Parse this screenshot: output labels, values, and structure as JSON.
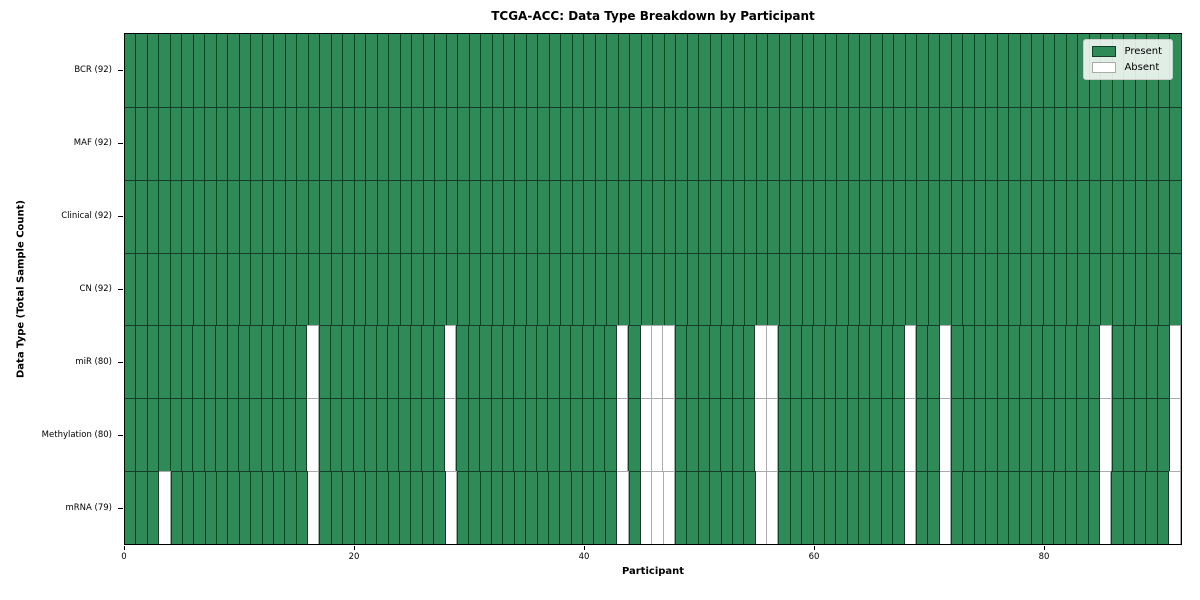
{
  "chart_data": {
    "type": "heatmap",
    "title": "TCGA-ACC: Data Type Breakdown by Participant",
    "xlabel": "Participant",
    "ylabel": "Data Type (Total Sample Count)",
    "n_participants": 92,
    "x_ticks": [
      0,
      20,
      40,
      60,
      80
    ],
    "x_range": [
      0,
      92
    ],
    "grid": "cell-borders",
    "legend_position": "upper-right",
    "legend": [
      {
        "label": "Present",
        "color": "#2e8b57"
      },
      {
        "label": "Absent",
        "color": "#ffffff"
      }
    ],
    "rows": [
      {
        "label": "BCR (92)",
        "data_type": "BCR",
        "present_count": 92,
        "absent_participants": []
      },
      {
        "label": "MAF (92)",
        "data_type": "MAF",
        "present_count": 92,
        "absent_participants": []
      },
      {
        "label": "Clinical (92)",
        "data_type": "Clinical",
        "present_count": 92,
        "absent_participants": []
      },
      {
        "label": "CN (92)",
        "data_type": "CN",
        "present_count": 92,
        "absent_participants": []
      },
      {
        "label": "miR (80)",
        "data_type": "miR",
        "present_count": 80,
        "absent_participants": [
          16,
          28,
          43,
          45,
          46,
          47,
          55,
          56,
          68,
          71,
          85,
          91
        ]
      },
      {
        "label": "Methylation (80)",
        "data_type": "Methylation",
        "present_count": 80,
        "absent_participants": [
          16,
          28,
          43,
          45,
          46,
          47,
          55,
          56,
          68,
          71,
          85,
          91
        ]
      },
      {
        "label": "mRNA (79)",
        "data_type": "mRNA",
        "present_count": 79,
        "absent_participants": [
          3,
          16,
          28,
          43,
          45,
          46,
          47,
          55,
          56,
          68,
          71,
          85,
          91
        ]
      }
    ],
    "colors": {
      "present": "#2e8b57",
      "absent": "#ffffff",
      "edge_present": "rgba(0,0,0,0.55)",
      "edge_absent": "#ababab",
      "frame": "#000000",
      "legend_border": "#cccccc"
    }
  }
}
